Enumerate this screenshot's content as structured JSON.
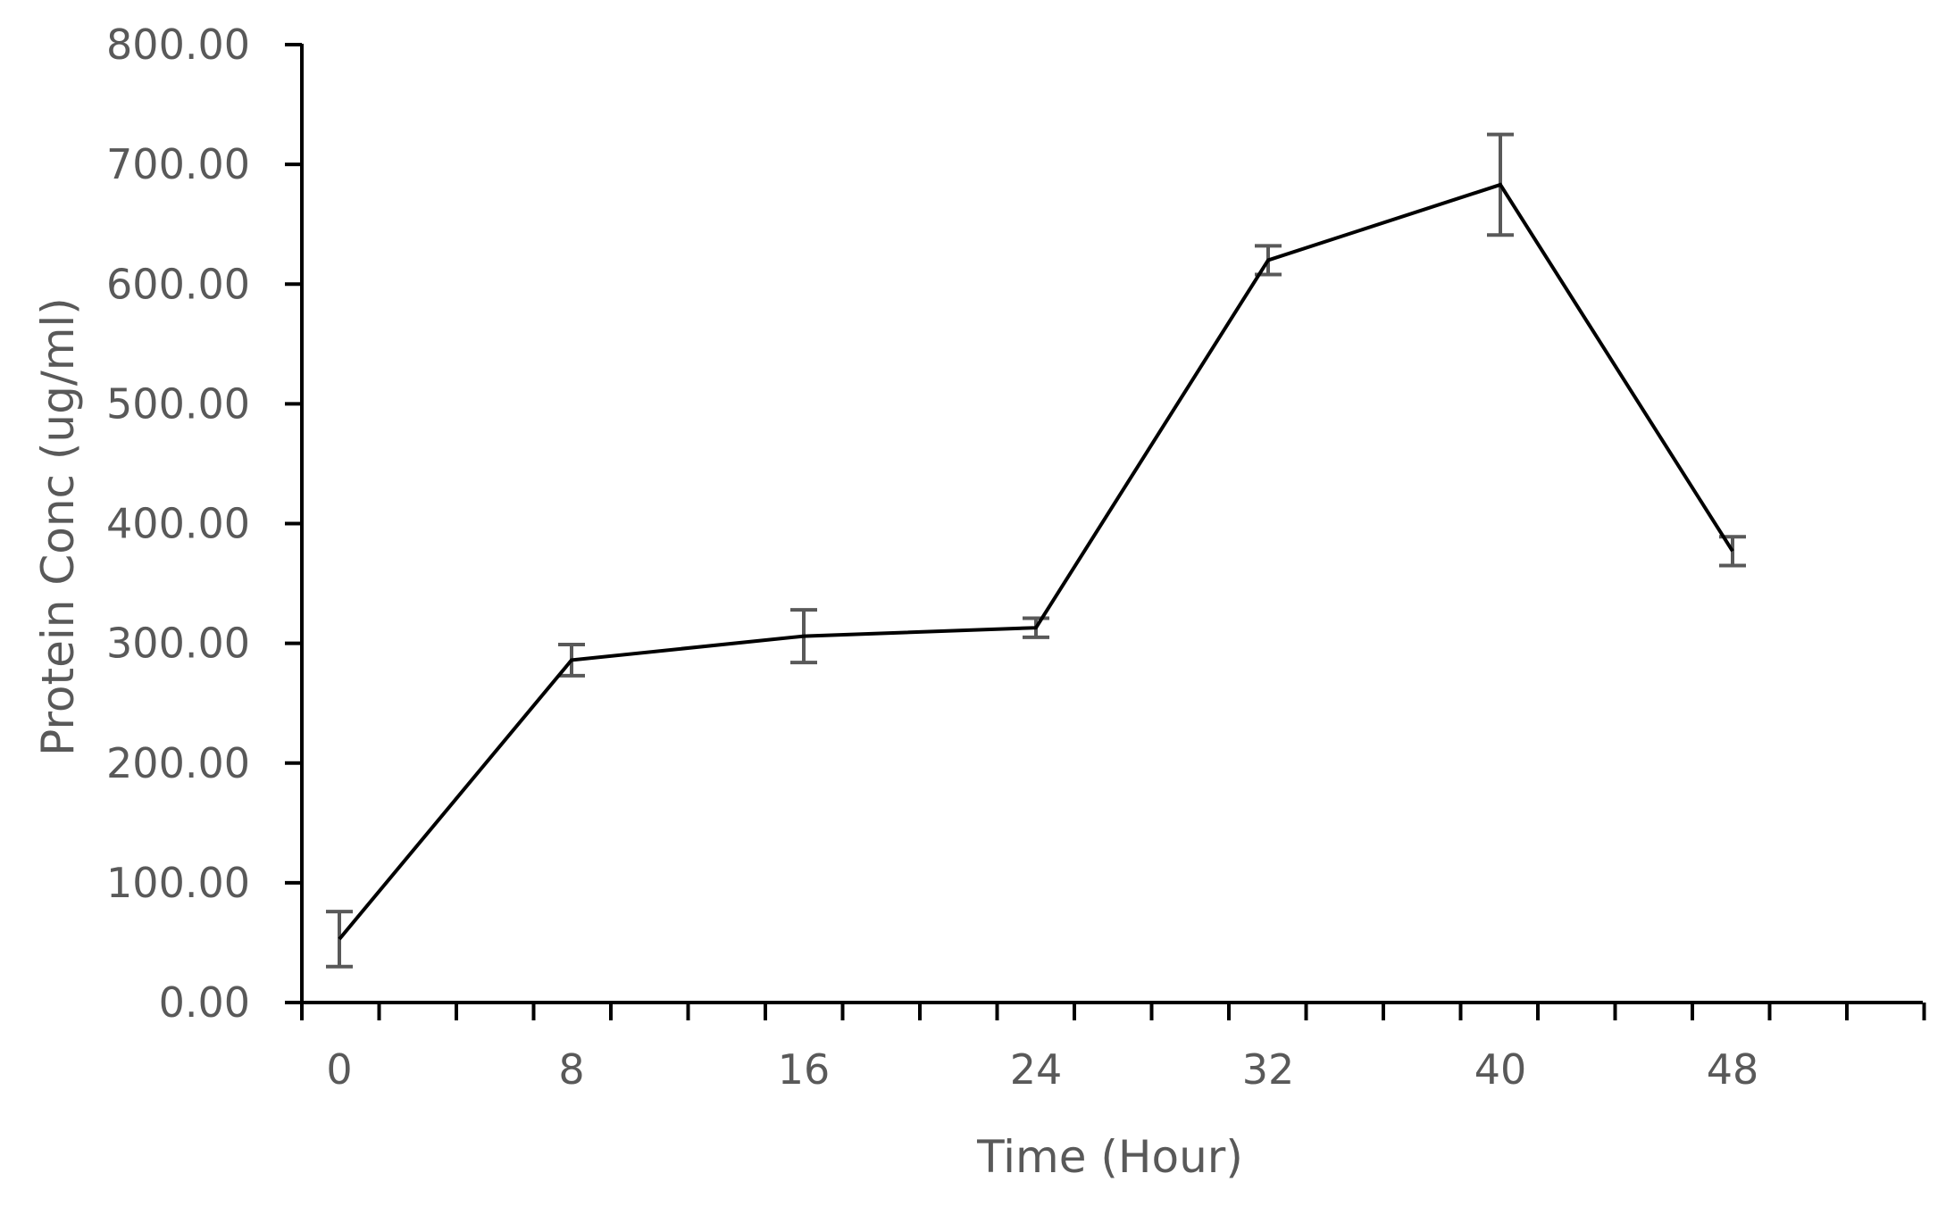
{
  "chart_data": {
    "type": "line",
    "title": "",
    "xlabel": "Time (Hour)",
    "ylabel": "Protein Conc (ug/ml)",
    "x": [
      0,
      8,
      16,
      24,
      32,
      40,
      48
    ],
    "categories": [
      "0",
      "8",
      "16",
      "24",
      "32",
      "40",
      "48"
    ],
    "series": [
      {
        "name": "Protein Conc",
        "values": [
          53,
          286,
          306,
          313,
          620,
          683,
          377
        ],
        "error": [
          23,
          13,
          22,
          8,
          12,
          42,
          12
        ],
        "color": "#000000",
        "error_color": "#595959"
      }
    ],
    "ylim": [
      0,
      800
    ],
    "y_ticks": [
      "0.00",
      "100.00",
      "200.00",
      "300.00",
      "400.00",
      "500.00",
      "600.00",
      "700.00",
      "800.00"
    ],
    "x_tick_labels": [
      "0",
      "8",
      "16",
      "24",
      "32",
      "40",
      "48"
    ],
    "grid": false,
    "legend": "none"
  },
  "colors": {
    "axis": "#000000",
    "text": "#595959",
    "line": "#000000",
    "error_bar": "#595959"
  }
}
